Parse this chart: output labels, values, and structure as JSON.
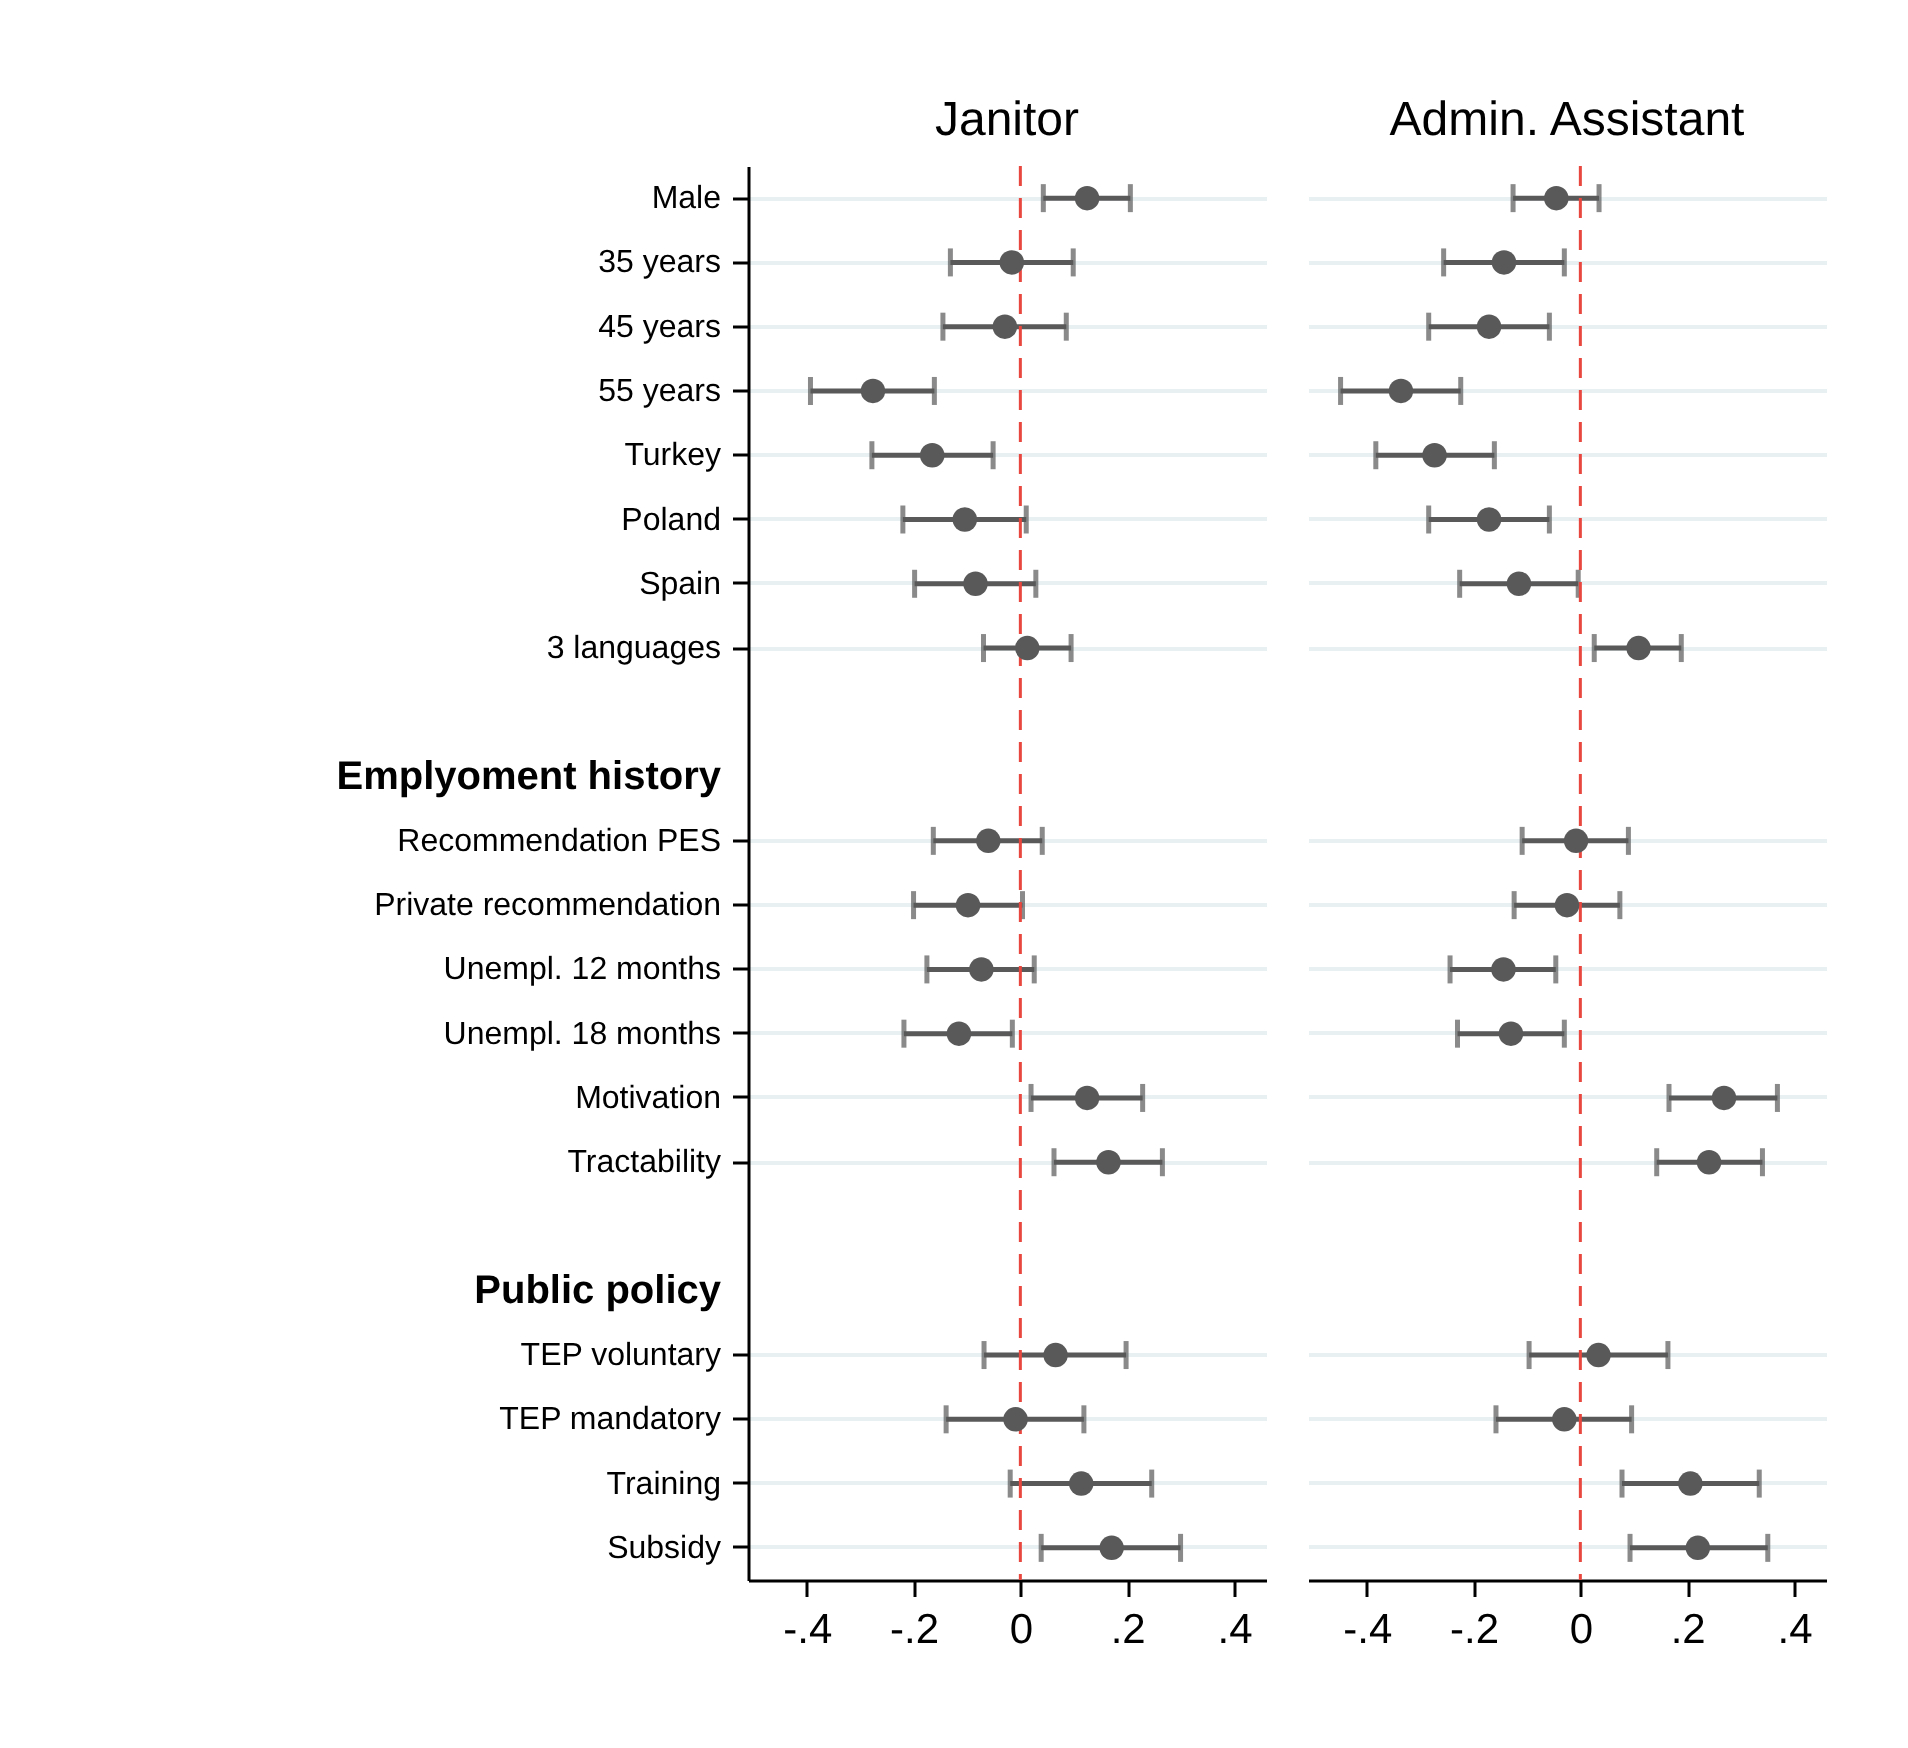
{
  "chart_data": [
    {
      "type": "scatter",
      "title": "Janitor",
      "orientation": "horizontal",
      "marker": "circle",
      "color": "#595959",
      "grid": "y",
      "categories": [
        "Male",
        "35 years",
        "45 years",
        "55 years",
        "Turkey",
        "Poland",
        "Spain",
        "3 languages",
        null,
        "Emplyoment history",
        "Recommendation PES",
        "Private recommendation",
        "Unempl. 12 months",
        "Unempl. 18 months",
        "Motivation",
        "Tractability",
        null,
        "Public policy",
        "TEP voluntary",
        "TEP mandatory",
        "Training",
        "Subsidy"
      ],
      "values": [
        0.125,
        -0.016,
        -0.029,
        -0.276,
        -0.165,
        -0.104,
        -0.084,
        0.013,
        null,
        null,
        -0.06,
        -0.098,
        -0.073,
        -0.115,
        0.125,
        0.165,
        null,
        null,
        0.066,
        -0.009,
        0.114,
        0.171
      ],
      "errors": [
        [
          0.043,
          0.206
        ],
        [
          -0.131,
          0.099
        ],
        [
          -0.145,
          0.086
        ],
        [
          -0.393,
          -0.161
        ],
        [
          -0.278,
          -0.051
        ],
        [
          -0.22,
          0.011
        ],
        [
          -0.198,
          0.029
        ],
        [
          -0.069,
          0.095
        ],
        null,
        null,
        [
          -0.163,
          0.041
        ],
        [
          -0.2,
          0.004
        ],
        [
          -0.175,
          0.026
        ],
        [
          -0.218,
          -0.015
        ],
        [
          0.02,
          0.229
        ],
        [
          0.063,
          0.266
        ],
        null,
        null,
        [
          -0.068,
          0.198
        ],
        [
          -0.139,
          0.119
        ],
        [
          -0.019,
          0.246
        ],
        [
          0.039,
          0.3
        ]
      ],
      "xlim": [
        -0.51,
        0.46
      ],
      "xticks": [
        {
          "value": -0.4,
          "label": "-.4"
        },
        {
          "value": -0.2,
          "label": "-.2"
        },
        0,
        {
          "value": 0.2,
          "label": ".2"
        },
        {
          "value": 0.4,
          "label": ".4"
        }
      ],
      "ref_lines": [
        {
          "axis": "x",
          "value": 0,
          "color": "#e8473f",
          "line_style": "dashed"
        }
      ]
    },
    {
      "type": "scatter",
      "title": "Admin. Assistant",
      "orientation": "horizontal",
      "marker": "circle",
      "color": "#595959",
      "grid": "y",
      "tick_labels": "x",
      "categories": [
        null,
        null,
        null,
        null,
        null,
        null,
        null,
        null,
        null,
        null,
        null,
        null,
        null,
        null,
        null,
        null,
        null,
        null,
        null,
        null,
        null,
        null
      ],
      "values": [
        -0.045,
        -0.143,
        -0.171,
        -0.336,
        -0.273,
        -0.171,
        -0.115,
        0.109,
        null,
        null,
        -0.008,
        -0.025,
        -0.144,
        -0.13,
        0.269,
        0.241,
        null,
        null,
        0.034,
        -0.03,
        0.206,
        0.22
      ],
      "errors": [
        [
          -0.126,
          0.035
        ],
        [
          -0.256,
          -0.03
        ],
        [
          -0.284,
          -0.058
        ],
        [
          -0.449,
          -0.224
        ],
        [
          -0.383,
          -0.161
        ],
        [
          -0.284,
          -0.058
        ],
        [
          -0.226,
          -0.004
        ],
        [
          0.026,
          0.189
        ],
        null,
        null,
        [
          -0.109,
          0.09
        ],
        [
          -0.124,
          0.074
        ],
        [
          -0.244,
          -0.046
        ],
        [
          -0.23,
          -0.03
        ],
        [
          0.166,
          0.369
        ],
        [
          0.143,
          0.341
        ],
        null,
        null,
        [
          -0.096,
          0.164
        ],
        [
          -0.158,
          0.096
        ],
        [
          0.078,
          0.335
        ],
        [
          0.093,
          0.351
        ]
      ],
      "xlim": [
        -0.51,
        0.46
      ],
      "xticks": [
        {
          "value": -0.4,
          "label": "-.4"
        },
        {
          "value": -0.2,
          "label": "-.2"
        },
        0,
        {
          "value": 0.2,
          "label": ".2"
        },
        {
          "value": 0.4,
          "label": ".4"
        }
      ],
      "ref_lines": [
        {
          "axis": "x",
          "value": 0,
          "color": "#e8473f",
          "line_style": "dashed"
        }
      ]
    }
  ]
}
